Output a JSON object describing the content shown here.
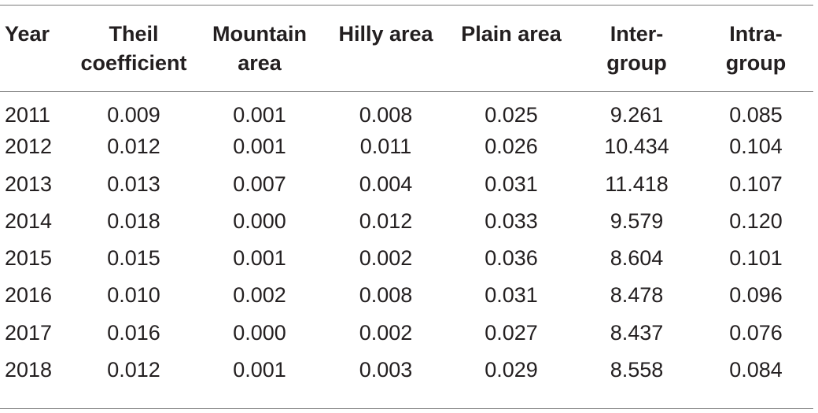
{
  "chart_data": {
    "type": "table",
    "columns": [
      "Year",
      "Theil\ncoefficient",
      "Mountain\narea",
      "Hilly area",
      "Plain area",
      "Inter-\ngroup",
      "Intra-\ngroup"
    ],
    "rows": [
      [
        "2011",
        "0.009",
        "0.001",
        "0.008",
        "0.025",
        "9.261",
        "0.085"
      ],
      [
        "2012",
        "0.012",
        "0.001",
        "0.011",
        "0.026",
        "10.434",
        "0.104"
      ],
      [
        "2013",
        "0.013",
        "0.007",
        "0.004",
        "0.031",
        "11.418",
        "0.107"
      ],
      [
        "2014",
        "0.018",
        "0.000",
        "0.012",
        "0.033",
        "9.579",
        "0.120"
      ],
      [
        "2015",
        "0.015",
        "0.001",
        "0.002",
        "0.036",
        "8.604",
        "0.101"
      ],
      [
        "2016",
        "0.010",
        "0.002",
        "0.008",
        "0.031",
        "8.478",
        "0.096"
      ],
      [
        "2017",
        "0.016",
        "0.000",
        "0.002",
        "0.027",
        "8.437",
        "0.076"
      ],
      [
        "2018",
        "0.012",
        "0.001",
        "0.003",
        "0.029",
        "8.558",
        "0.084"
      ]
    ]
  }
}
